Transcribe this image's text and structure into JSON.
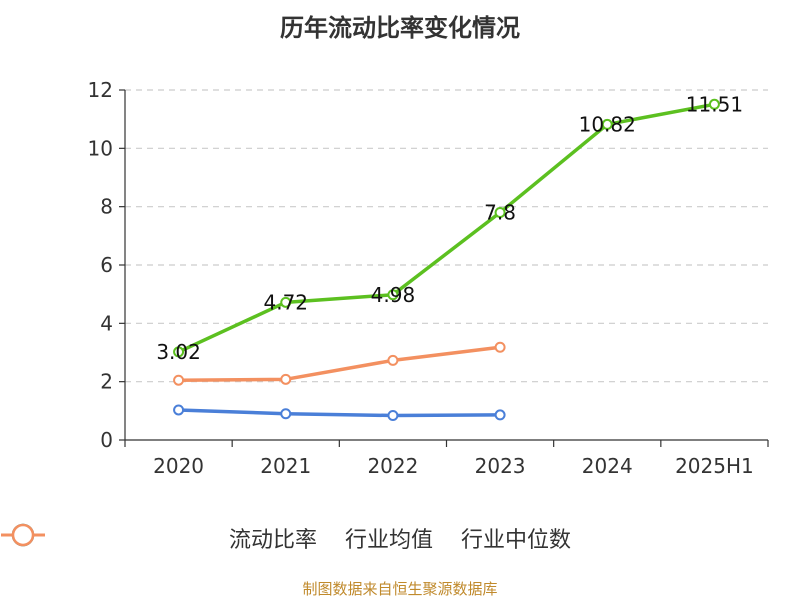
{
  "chart_data": {
    "type": "line",
    "title": "历年流动比率变化情况",
    "categories": [
      "2020",
      "2021",
      "2022",
      "2023",
      "2024",
      "2025H1"
    ],
    "ylim": [
      0,
      12
    ],
    "yticks": [
      0,
      2,
      4,
      6,
      8,
      10,
      12
    ],
    "grid": true,
    "legend_position": "bottom",
    "series": [
      {
        "name": "流动比率",
        "color": "#5cc020",
        "values": [
          3.02,
          4.72,
          4.98,
          7.8,
          10.82,
          11.51
        ],
        "labels": [
          "3.02",
          "4.72",
          "4.98",
          "7.8",
          "10.82",
          "11.51"
        ]
      },
      {
        "name": "行业均值",
        "color": "#4a7fd8",
        "values": [
          1.03,
          0.9,
          0.84,
          0.86,
          null,
          null
        ]
      },
      {
        "name": "行业中位数",
        "color": "#f39060",
        "values": [
          2.05,
          2.08,
          2.73,
          3.18,
          null,
          null
        ]
      }
    ]
  },
  "footer": "制图数据来自恒生聚源数据库"
}
